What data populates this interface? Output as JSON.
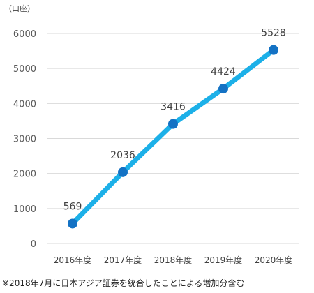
{
  "chart_data": {
    "type": "line",
    "unit_label": "（口座）",
    "categories": [
      "2016年度",
      "2017年度",
      "2018年度",
      "2019年度",
      "2020年度"
    ],
    "series": [
      {
        "values": [
          569,
          2036,
          3416,
          4424,
          5528
        ],
        "line_color": "#1cb0e8",
        "marker_color": "#1472c4"
      }
    ],
    "ylim": [
      0,
      6000
    ],
    "yticks": [
      0,
      1000,
      2000,
      3000,
      4000,
      5000,
      6000
    ],
    "grid": true,
    "legend": "none",
    "footnote": "※2018年7月に日本アジア証券を統合したことによる増加分含む"
  }
}
